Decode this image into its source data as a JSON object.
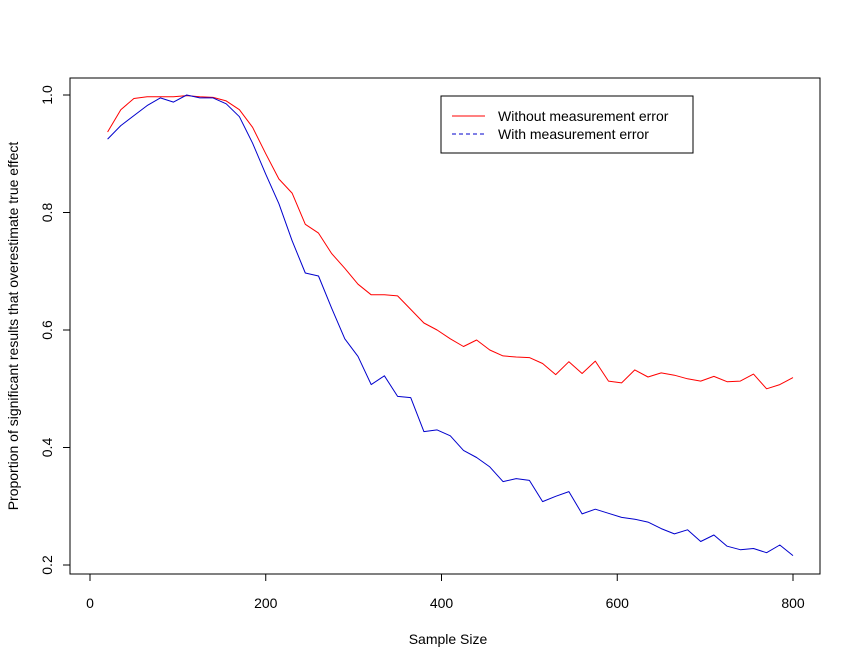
{
  "chart_data": {
    "type": "line",
    "title": "",
    "xlabel": "Sample Size",
    "ylabel": "Proportion of significant results that overestimate true effect",
    "xlim": [
      0,
      830
    ],
    "ylim": [
      0.19,
      1.03
    ],
    "x_ticks": [
      0,
      200,
      400,
      600,
      800
    ],
    "x_tick_labels": [
      "0",
      "200",
      "400",
      "600",
      "800"
    ],
    "y_ticks": [
      0.2,
      0.4,
      0.6,
      0.8,
      1.0
    ],
    "y_tick_labels": [
      "0.2",
      "0.4",
      "0.6",
      "0.8",
      "1.0"
    ],
    "grid": false,
    "legend_position": "top-right",
    "x": [
      20,
      35,
      50,
      65,
      80,
      95,
      110,
      125,
      140,
      155,
      170,
      185,
      200,
      215,
      230,
      245,
      260,
      275,
      290,
      305,
      320,
      335,
      350,
      365,
      380,
      395,
      410,
      425,
      440,
      455,
      470,
      485,
      500,
      515,
      530,
      545,
      560,
      575,
      590,
      605,
      620,
      635,
      650,
      665,
      680,
      695,
      710,
      725,
      740,
      755,
      770,
      785,
      800
    ],
    "series": [
      {
        "name": "Without measurement error",
        "color": "#ff0000",
        "dash": "solid",
        "values": [
          0.937,
          0.975,
          0.994,
          0.997,
          0.997,
          0.997,
          0.999,
          0.997,
          0.996,
          0.99,
          0.975,
          0.945,
          0.9,
          0.857,
          0.833,
          0.78,
          0.765,
          0.73,
          0.705,
          0.678,
          0.66,
          0.66,
          0.658,
          0.635,
          0.612,
          0.6,
          0.585,
          0.572,
          0.583,
          0.566,
          0.556,
          0.554,
          0.553,
          0.543,
          0.524,
          0.546,
          0.526,
          0.547,
          0.513,
          0.51,
          0.532,
          0.52,
          0.527,
          0.523,
          0.517,
          0.513,
          0.521,
          0.512,
          0.513,
          0.525,
          0.5,
          0.507,
          0.519
        ]
      },
      {
        "name": "With measurement error",
        "color": "#0000cd",
        "dash": "dashed",
        "values": [
          0.925,
          0.948,
          0.965,
          0.982,
          0.995,
          0.988,
          1.0,
          0.995,
          0.995,
          0.985,
          0.963,
          0.918,
          0.865,
          0.815,
          0.752,
          0.697,
          0.692,
          0.637,
          0.585,
          0.555,
          0.507,
          0.522,
          0.487,
          0.485,
          0.427,
          0.43,
          0.42,
          0.395,
          0.383,
          0.367,
          0.342,
          0.347,
          0.344,
          0.308,
          0.317,
          0.325,
          0.287,
          0.295,
          0.288,
          0.281,
          0.278,
          0.273,
          0.262,
          0.253,
          0.26,
          0.24,
          0.251,
          0.232,
          0.226,
          0.228,
          0.221,
          0.234,
          0.216
        ]
      }
    ]
  }
}
